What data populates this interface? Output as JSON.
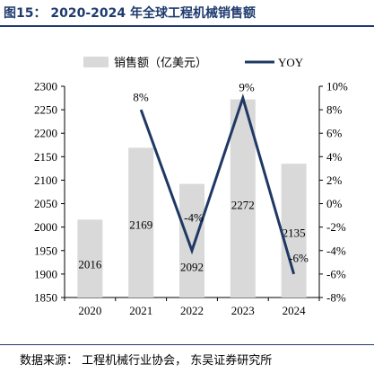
{
  "title": "图15： 2020-2024 年全球工程机械销售额",
  "source": "数据来源： 工程机械行业协会， 东吴证券研究所",
  "colors": {
    "bar": "#d9d9d9",
    "line": "#1f3864",
    "heading": "#1f3b6e"
  },
  "chart_data": {
    "type": "bar+line",
    "categories": [
      "2020",
      "2021",
      "2022",
      "2023",
      "2024"
    ],
    "series": [
      {
        "name": "销售额（亿美元）",
        "type": "bar",
        "axis": "left",
        "values": [
          2016,
          2169,
          2092,
          2272,
          2135
        ],
        "labels": [
          "2016",
          "2169",
          "2092",
          "2272",
          "2135"
        ]
      },
      {
        "name": "YOY",
        "type": "line",
        "axis": "right",
        "values": [
          null,
          8,
          -4,
          9,
          -6
        ],
        "labels": [
          "",
          "8%",
          "-4%",
          "9%",
          "-6%"
        ]
      }
    ],
    "y_left": {
      "range": [
        1850,
        2300
      ],
      "ticks": [
        "1850",
        "1900",
        "1950",
        "2000",
        "2050",
        "2100",
        "2150",
        "2200",
        "2250",
        "2300"
      ]
    },
    "y_right": {
      "range": [
        -8,
        10
      ],
      "ticks": [
        "-8%",
        "-6%",
        "-4%",
        "-2%",
        "0%",
        "2%",
        "4%",
        "6%",
        "8%",
        "10%"
      ]
    },
    "grid": false,
    "legend": "top"
  }
}
